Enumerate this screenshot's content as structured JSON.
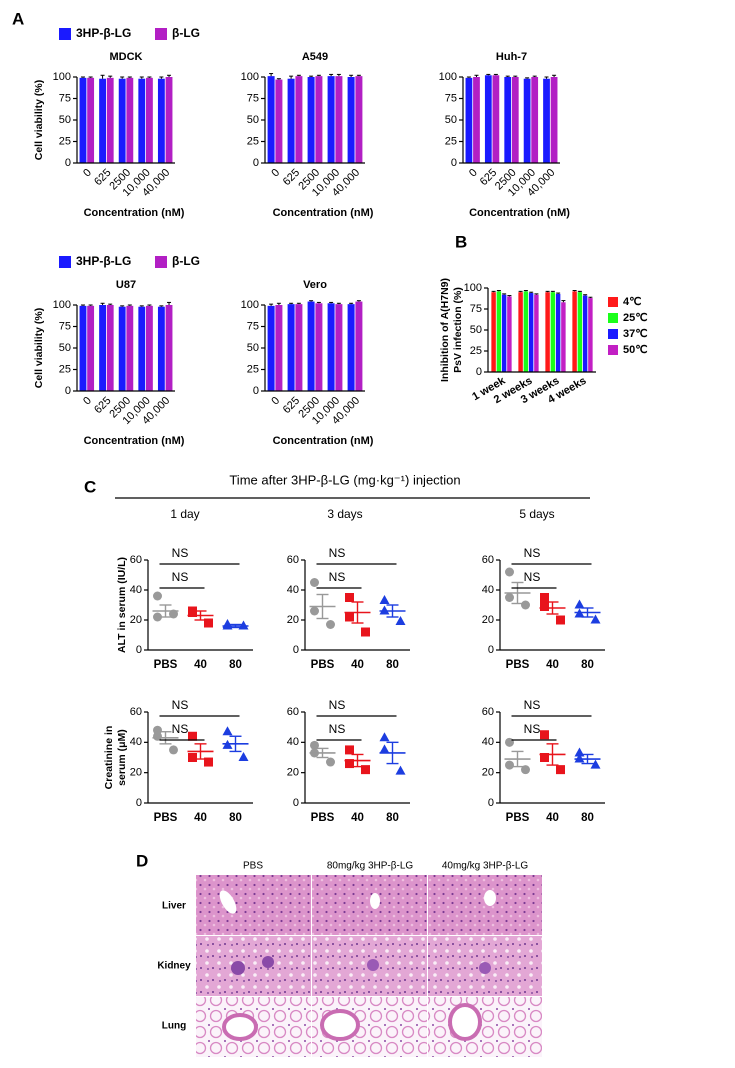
{
  "panel_labels": [
    "A",
    "B",
    "C",
    "D"
  ],
  "chart_data": [
    {
      "type": "bar",
      "title": "MDCK",
      "ylabel": "Cell viability (%)",
      "xlabel": "Concentration (nM)",
      "legend": "above",
      "categories": [
        "0",
        "625",
        "2500",
        "10,000",
        "40,000"
      ],
      "series": [
        {
          "name": "3HP-β-LG",
          "color": "#1a1aff",
          "values": [
            99,
            98,
            98,
            98,
            98
          ],
          "errors": [
            1,
            4,
            2,
            2,
            2
          ]
        },
        {
          "name": "β-LG",
          "color": "#b21fc4",
          "values": [
            99,
            99,
            99,
            99,
            100
          ],
          "errors": [
            1,
            2,
            1,
            1,
            2
          ]
        }
      ],
      "ylim": [
        0,
        100
      ],
      "yticks": [
        0,
        25,
        50,
        75,
        100
      ]
    },
    {
      "type": "bar",
      "title": "A549",
      "xlabel": "Concentration (nM)",
      "categories": [
        "0",
        "625",
        "2500",
        "10,000",
        "40,000"
      ],
      "series": [
        {
          "color": "#1a1aff",
          "values": [
            101,
            98,
            100,
            101,
            100
          ],
          "errors": [
            3,
            3,
            1,
            2,
            2
          ]
        },
        {
          "color": "#b21fc4",
          "values": [
            97,
            101,
            101,
            101,
            101
          ],
          "errors": [
            1,
            1,
            1,
            2,
            1
          ]
        }
      ],
      "ylim": [
        0,
        100
      ],
      "yticks": [
        0,
        25,
        50,
        75,
        100
      ]
    },
    {
      "type": "bar",
      "title": "Huh-7",
      "xlabel": "Concentration (nM)",
      "categories": [
        "0",
        "625",
        "2500",
        "10,000",
        "40,000"
      ],
      "series": [
        {
          "color": "#1a1aff",
          "values": [
            99,
            102,
            100,
            98,
            98
          ],
          "errors": [
            1,
            1,
            1,
            1,
            2
          ]
        },
        {
          "color": "#b21fc4",
          "values": [
            100,
            102,
            100,
            100,
            100
          ],
          "errors": [
            2,
            1,
            1,
            1,
            2
          ]
        }
      ],
      "ylim": [
        0,
        100
      ],
      "yticks": [
        0,
        25,
        50,
        75,
        100
      ]
    },
    {
      "type": "bar",
      "title": "U87",
      "ylabel": "Cell viability (%)",
      "xlabel": "Concentration (nM)",
      "legend": "above",
      "categories": [
        "0",
        "625",
        "2500",
        "10,000",
        "40,000"
      ],
      "series": [
        {
          "name": "3HP-β-LG",
          "color": "#1a1aff",
          "values": [
            99,
            100,
            98,
            98,
            98
          ],
          "errors": [
            1,
            2,
            1,
            1,
            1
          ]
        },
        {
          "name": "β-LG",
          "color": "#b21fc4",
          "values": [
            99,
            100,
            99,
            99,
            100
          ],
          "errors": [
            1,
            1,
            1,
            1,
            3
          ]
        }
      ],
      "ylim": [
        0,
        100
      ],
      "yticks": [
        0,
        25,
        50,
        75,
        100
      ]
    },
    {
      "type": "bar",
      "title": "Vero",
      "xlabel": "Concentration (nM)",
      "categories": [
        "0",
        "625",
        "2500",
        "10,000",
        "40,000"
      ],
      "series": [
        {
          "color": "#1a1aff",
          "values": [
            99,
            101,
            104,
            102,
            101
          ],
          "errors": [
            2,
            1,
            1,
            1,
            1
          ]
        },
        {
          "color": "#b21fc4",
          "values": [
            100,
            101,
            102,
            101,
            104
          ],
          "errors": [
            2,
            1,
            1,
            1,
            1
          ]
        }
      ],
      "ylim": [
        0,
        100
      ],
      "yticks": [
        0,
        25,
        50,
        75,
        100
      ]
    },
    {
      "type": "bar",
      "ylabel": [
        "Inhibition of A(H7N9)",
        "PsV infection (%)"
      ],
      "legend": "right",
      "categories": [
        "1 week",
        "2 weeks",
        "3 weeks",
        "4 weeks"
      ],
      "series": [
        {
          "name": "4℃",
          "color": "#ff1a1a",
          "values": [
            95,
            95,
            95,
            96
          ],
          "errors": [
            1,
            1,
            1,
            1
          ]
        },
        {
          "name": "25℃",
          "color": "#1aff1a",
          "values": [
            96,
            96,
            95,
            95
          ],
          "errors": [
            1,
            1,
            1,
            1
          ]
        },
        {
          "name": "37℃",
          "color": "#1a1aff",
          "values": [
            92,
            94,
            93,
            91
          ],
          "errors": [
            1,
            1,
            1,
            1
          ]
        },
        {
          "name": "50℃",
          "color": "#c21fc4",
          "values": [
            90,
            92,
            83,
            88
          ],
          "errors": [
            1,
            1,
            2,
            1
          ]
        }
      ],
      "ylim": [
        0,
        100
      ],
      "yticks": [
        0,
        25,
        50,
        75,
        100
      ]
    },
    {
      "type": "dot",
      "ylabel": "ALT in serum (IU/L)",
      "categories": [
        "PBS",
        "40",
        "80"
      ],
      "points": [
        [
          36,
          22,
          24
        ],
        [
          26,
          25,
          18
        ],
        [
          16,
          17,
          16
        ]
      ],
      "mean": [
        26,
        23,
        16
      ],
      "sem": [
        4,
        3,
        1
      ],
      "colors": [
        "#999999",
        "#e8141c",
        "#1c3de0"
      ],
      "markers": [
        "circle",
        "square",
        "triangle"
      ],
      "ylim": [
        0,
        60
      ],
      "yticks": [
        0,
        20,
        40,
        60
      ],
      "annotations": [
        "NS",
        "NS"
      ]
    },
    {
      "type": "dot",
      "categories": [
        "PBS",
        "40",
        "80"
      ],
      "points": [
        [
          45,
          26,
          17
        ],
        [
          35,
          22,
          12
        ],
        [
          33,
          26,
          19
        ]
      ],
      "mean": [
        29,
        25,
        26
      ],
      "sem": [
        8,
        7,
        4
      ],
      "colors": [
        "#999999",
        "#e8141c",
        "#1c3de0"
      ],
      "markers": [
        "circle",
        "square",
        "triangle"
      ],
      "ylim": [
        0,
        60
      ],
      "yticks": [
        0,
        20,
        40,
        60
      ],
      "annotations": [
        "NS",
        "NS"
      ]
    },
    {
      "type": "dot",
      "categories": [
        "PBS",
        "40",
        "80"
      ],
      "points": [
        [
          52,
          35,
          30
        ],
        [
          35,
          29,
          20
        ],
        [
          30,
          24,
          20
        ]
      ],
      "mean": [
        38,
        28,
        25
      ],
      "sem": [
        7,
        4,
        3
      ],
      "colors": [
        "#999999",
        "#e8141c",
        "#1c3de0"
      ],
      "markers": [
        "circle",
        "square",
        "triangle"
      ],
      "ylim": [
        0,
        60
      ],
      "yticks": [
        0,
        20,
        40,
        60
      ],
      "annotations": [
        "NS",
        "NS"
      ]
    },
    {
      "type": "dot",
      "ylabel": [
        "Creatinine in",
        "serum (μM)"
      ],
      "categories": [
        "PBS",
        "40",
        "80"
      ],
      "points": [
        [
          48,
          44,
          35
        ],
        [
          44,
          30,
          27
        ],
        [
          47,
          38,
          30
        ]
      ],
      "mean": [
        43,
        34,
        39
      ],
      "sem": [
        4,
        5,
        5
      ],
      "colors": [
        "#999999",
        "#e8141c",
        "#1c3de0"
      ],
      "markers": [
        "circle",
        "square",
        "triangle"
      ],
      "ylim": [
        0,
        60
      ],
      "yticks": [
        0,
        20,
        40,
        60
      ],
      "annotations": [
        "NS",
        "NS"
      ]
    },
    {
      "type": "dot",
      "categories": [
        "PBS",
        "40",
        "80"
      ],
      "points": [
        [
          38,
          33,
          27
        ],
        [
          35,
          26,
          22
        ],
        [
          43,
          35,
          21
        ]
      ],
      "mean": [
        33,
        28,
        33
      ],
      "sem": [
        3,
        4,
        7
      ],
      "colors": [
        "#999999",
        "#e8141c",
        "#1c3de0"
      ],
      "markers": [
        "circle",
        "square",
        "triangle"
      ],
      "ylim": [
        0,
        60
      ],
      "yticks": [
        0,
        20,
        40,
        60
      ],
      "annotations": [
        "NS",
        "NS"
      ]
    },
    {
      "type": "dot",
      "categories": [
        "PBS",
        "40",
        "80"
      ],
      "points": [
        [
          40,
          25,
          22
        ],
        [
          45,
          30,
          22
        ],
        [
          33,
          29,
          25
        ]
      ],
      "mean": [
        29,
        32,
        29
      ],
      "sem": [
        5,
        7,
        3
      ],
      "colors": [
        "#999999",
        "#e8141c",
        "#1c3de0"
      ],
      "markers": [
        "circle",
        "square",
        "triangle"
      ],
      "ylim": [
        0,
        60
      ],
      "yticks": [
        0,
        20,
        40,
        60
      ],
      "annotations": [
        "NS",
        "NS"
      ]
    }
  ],
  "panel_c": {
    "header": "Time after 3HP-β-LG (mg·kg⁻¹) injection",
    "columns": [
      "1 day",
      "3 days",
      "5 days"
    ]
  },
  "panel_d": {
    "columns": [
      "PBS",
      "80mg/kg 3HP-β-LG",
      "40mg/kg 3HP-β-LG"
    ],
    "rows": [
      "Liver",
      "Kidney",
      "Lung"
    ]
  }
}
